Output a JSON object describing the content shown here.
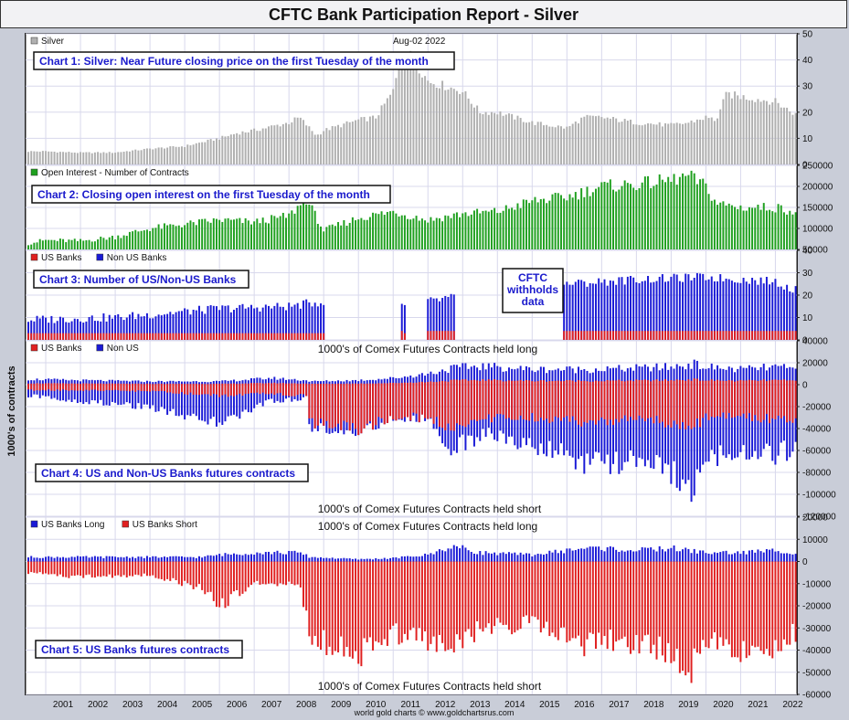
{
  "title": "CFTC Bank Participation Report - Silver",
  "y_axis_label": "1000's of contracts",
  "footer": "world gold charts © www.goldchartsrus.com",
  "x_axis_years": [
    "2001",
    "2002",
    "2003",
    "2004",
    "2005",
    "2006",
    "2007",
    "2008",
    "2009",
    "2010",
    "2011",
    "2012",
    "2013",
    "2014",
    "2015",
    "2016",
    "2017",
    "2018",
    "2019",
    "2020",
    "2021",
    "2022"
  ],
  "colors": {
    "us": "#e02020",
    "nonus": "#1a1ad6",
    "oi": "#1fa01f",
    "price": "#b0b0b0",
    "label_text": "#1a1acc"
  },
  "chart_data": [
    {
      "type": "bar",
      "id": "c1",
      "legend": [
        {
          "name": "Silver",
          "color": "#b0b0b0"
        }
      ],
      "date_label": "Aug-02  2022",
      "title": "Chart 1: Silver: Near Future closing price on the first Tuesday of the month",
      "ylim": [
        0,
        50
      ],
      "yticks": [
        0,
        10,
        20,
        30,
        40,
        50
      ],
      "x_years": [
        2000.5,
        2001,
        2002,
        2003,
        2004,
        2005,
        2006,
        2006.5,
        2007,
        2008,
        2008.3,
        2008.8,
        2009,
        2010,
        2010.5,
        2011,
        2011.3,
        2011.7,
        2012,
        2012.5,
        2013,
        2013.5,
        2014,
        2015,
        2016,
        2016.5,
        2017,
        2018,
        2019,
        2019.5,
        2020,
        2020.3,
        2020.6,
        2021,
        2021.5,
        2022,
        2022.6
      ],
      "values": [
        5,
        5,
        4.5,
        4.6,
        6,
        7,
        10,
        12,
        13,
        16,
        18,
        11,
        13,
        17,
        18,
        28,
        45,
        38,
        32,
        30,
        28,
        20,
        20,
        16,
        14,
        18,
        18,
        16,
        15,
        16,
        18,
        17,
        27,
        26,
        25,
        24,
        19
      ]
    },
    {
      "type": "bar",
      "id": "c2",
      "legend": [
        {
          "name": "Open Interest - Number of Contracts",
          "color": "#1fa01f"
        }
      ],
      "title": "Chart 2: Closing open interest on the first Tuesday of the month",
      "ylim": [
        50000,
        250000
      ],
      "yticks": [
        50000,
        100000,
        150000,
        200000,
        250000
      ],
      "x_years": [
        2000.5,
        2001,
        2002,
        2003,
        2004,
        2005,
        2006,
        2007,
        2008,
        2008.5,
        2009,
        2010,
        2011,
        2012,
        2013,
        2014,
        2015,
        2016,
        2017,
        2018,
        2019,
        2019.5,
        2020,
        2020.3,
        2021,
        2022,
        2022.6
      ],
      "values": [
        65000,
        72000,
        70000,
        80000,
        100000,
        110000,
        120000,
        115000,
        130000,
        170000,
        95000,
        125000,
        140000,
        120000,
        135000,
        140000,
        165000,
        175000,
        200000,
        205000,
        215000,
        225000,
        200000,
        160000,
        150000,
        150000,
        140000
      ]
    },
    {
      "type": "bar",
      "id": "c3",
      "legend": [
        {
          "name": "US Banks",
          "color": "#e02020"
        },
        {
          "name": "Non US Banks",
          "color": "#1a1ad6"
        }
      ],
      "title": "Chart 3: Number of US/Non-US Banks",
      "annotation": "CFTC\nwithholds\ndata",
      "ylim": [
        0,
        40
      ],
      "yticks": [
        0,
        10,
        20,
        30,
        40
      ],
      "us_x": [
        2000.5,
        2008.9,
        2012,
        2012.7,
        2016,
        2022.6
      ],
      "us_values": [
        3,
        3,
        4,
        4,
        4,
        4
      ],
      "nonus_x": [
        2000.5,
        2003,
        2006,
        2008,
        2008.9,
        2011.3,
        2012,
        2012.7,
        2016,
        2018,
        2020,
        2022,
        2022.6
      ],
      "nonus_values": [
        9,
        10,
        14,
        15,
        17,
        15,
        17,
        19,
        25,
        27,
        28,
        26,
        22
      ],
      "gaps": [
        [
          2009.0,
          2011.25
        ],
        [
          2011.35,
          2011.95
        ],
        [
          2012.8,
          2015.9
        ]
      ]
    },
    {
      "type": "bar",
      "id": "c4",
      "legend": [
        {
          "name": "US Banks",
          "color": "#e02020"
        },
        {
          "name": "Non US",
          "color": "#1a1ad6"
        }
      ],
      "subtitle_long": "1000's of Comex Futures Contracts held long",
      "subtitle_short": "1000's of Comex Futures Contracts held short",
      "title": "Chart 4: US and Non-US Banks futures contracts",
      "ylim": [
        -120000,
        40000
      ],
      "yticks": [
        40000,
        20000,
        0,
        -20000,
        -40000,
        -60000,
        -80000,
        -100000,
        -120000
      ],
      "x_years": [
        2000.5,
        2002,
        2004,
        2006,
        2007.5,
        2008.5,
        2008.6,
        2010,
        2011,
        2012,
        2012.7,
        2013.5,
        2015,
        2017,
        2018,
        2019,
        2019.6,
        2020,
        2021,
        2022,
        2022.6
      ],
      "long_values": [
        5000,
        4000,
        3000,
        3000,
        6000,
        4000,
        3000,
        4000,
        6000,
        10000,
        15000,
        17000,
        14000,
        14000,
        15000,
        16000,
        19000,
        16000,
        14000,
        16000,
        14000
      ],
      "short_us_values": [
        -5000,
        -5000,
        -6000,
        -10000,
        -8000,
        -10000,
        -35000,
        -40000,
        -30000,
        -30000,
        -40000,
        -30000,
        -30000,
        -35000,
        -30000,
        -35000,
        -40000,
        -30000,
        -28000,
        -32000,
        -30000
      ],
      "short_total_values": [
        -10000,
        -15000,
        -20000,
        -35000,
        -15000,
        -12000,
        -38000,
        -42000,
        -30000,
        -32000,
        -60000,
        -45000,
        -55000,
        -75000,
        -70000,
        -80000,
        -95000,
        -65000,
        -60000,
        -65000,
        -55000
      ]
    },
    {
      "type": "bar",
      "id": "c5",
      "legend": [
        {
          "name": "US Banks Long",
          "color": "#1a1ad6"
        },
        {
          "name": "US Banks Short",
          "color": "#e02020"
        }
      ],
      "subtitle_long": "1000's of Comex Futures Contracts held long",
      "subtitle_short": "1000's of Comex Futures Contracts held short",
      "title": "Chart 5: US Banks futures contracts",
      "ylim": [
        -60000,
        20000
      ],
      "yticks": [
        20000,
        10000,
        0,
        -10000,
        -20000,
        -30000,
        -40000,
        -50000,
        -60000
      ],
      "x_years": [
        2000.5,
        2002,
        2004,
        2005.5,
        2006,
        2007,
        2008.3,
        2008.6,
        2010,
        2011,
        2012,
        2012.7,
        2013.5,
        2015,
        2016.5,
        2017,
        2018,
        2019,
        2019.5,
        2020,
        2021,
        2022,
        2022.6
      ],
      "long_values": [
        2000,
        2000,
        2000,
        2000,
        3000,
        4000,
        4000,
        2000,
        1000,
        1500,
        3000,
        7000,
        4000,
        3000,
        6000,
        6000,
        5000,
        6000,
        5000,
        4000,
        4000,
        5000,
        4000
      ],
      "short_values": [
        -5000,
        -7000,
        -6000,
        -12000,
        -20000,
        -10000,
        -10000,
        -34000,
        -42000,
        -32000,
        -36000,
        -40000,
        -30000,
        -28000,
        -38000,
        -35000,
        -38000,
        -40000,
        -52000,
        -34000,
        -40000,
        -38000,
        -32000
      ]
    }
  ]
}
